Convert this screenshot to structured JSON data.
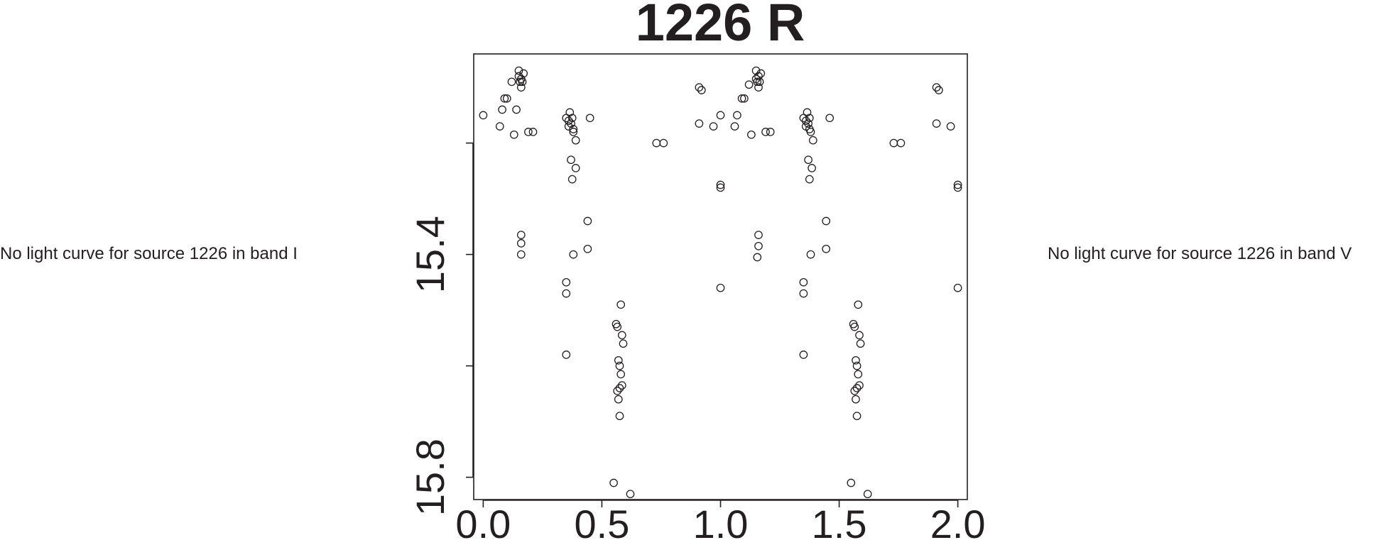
{
  "notes": {
    "left": "No light curve for source 1226 in band I",
    "right": "No light curve for source 1226 in band V"
  },
  "chart_data": {
    "type": "scatter",
    "title": "1226 R",
    "xlabel": "",
    "ylabel": "",
    "x_ticks": [
      0.0,
      0.5,
      1.0,
      1.5,
      2.0
    ],
    "x_tick_labels": [
      "0.0",
      "0.5",
      "1.0",
      "1.5",
      "2.0"
    ],
    "y_ticks": [
      15.2,
      15.4,
      15.6,
      15.8
    ],
    "y_tick_labels": [
      "",
      "15.4",
      "",
      "15.8"
    ],
    "xlim": [
      -0.04,
      2.04
    ],
    "ylim": [
      15.84,
      15.04
    ],
    "y_inverted": true,
    "grid": false,
    "marker": "open-circle",
    "color": "#231f20",
    "points": [
      [
        0.0,
        15.15
      ],
      [
        0.07,
        15.17
      ],
      [
        0.08,
        15.14
      ],
      [
        0.09,
        15.12
      ],
      [
        0.1,
        15.12
      ],
      [
        0.12,
        15.09
      ],
      [
        0.13,
        15.185
      ],
      [
        0.14,
        15.14
      ],
      [
        0.15,
        15.07
      ],
      [
        0.15,
        15.08
      ],
      [
        0.155,
        15.09
      ],
      [
        0.16,
        15.085
      ],
      [
        0.165,
        15.09
      ],
      [
        0.17,
        15.075
      ],
      [
        0.16,
        15.1
      ],
      [
        0.19,
        15.18
      ],
      [
        0.21,
        15.18
      ],
      [
        0.16,
        15.365
      ],
      [
        0.16,
        15.38
      ],
      [
        0.16,
        15.4
      ],
      [
        0.35,
        15.155
      ],
      [
        0.36,
        15.16
      ],
      [
        0.365,
        15.145
      ],
      [
        0.37,
        15.165
      ],
      [
        0.375,
        15.155
      ],
      [
        0.36,
        15.17
      ],
      [
        0.38,
        15.18
      ],
      [
        0.39,
        15.195
      ],
      [
        0.38,
        15.175
      ],
      [
        0.37,
        15.23
      ],
      [
        0.39,
        15.245
      ],
      [
        0.375,
        15.265
      ],
      [
        0.45,
        15.155
      ],
      [
        0.44,
        15.34
      ],
      [
        0.44,
        15.39
      ],
      [
        0.38,
        15.4
      ],
      [
        0.35,
        15.45
      ],
      [
        0.35,
        15.47
      ],
      [
        0.35,
        15.58
      ],
      [
        0.56,
        15.525
      ],
      [
        0.58,
        15.49
      ],
      [
        0.585,
        15.545
      ],
      [
        0.59,
        15.56
      ],
      [
        0.565,
        15.53
      ],
      [
        0.57,
        15.59
      ],
      [
        0.575,
        15.6
      ],
      [
        0.58,
        15.615
      ],
      [
        0.585,
        15.635
      ],
      [
        0.575,
        15.64
      ],
      [
        0.565,
        15.645
      ],
      [
        0.57,
        15.66
      ],
      [
        0.575,
        15.69
      ],
      [
        0.55,
        15.81
      ],
      [
        0.62,
        15.83
      ],
      [
        0.73,
        15.2
      ],
      [
        0.76,
        15.2
      ],
      [
        0.91,
        15.1
      ],
      [
        0.92,
        15.105
      ],
      [
        0.91,
        15.165
      ],
      [
        0.97,
        15.17
      ],
      [
        1.0,
        15.15
      ],
      [
        1.0,
        15.275
      ],
      [
        1.0,
        15.28
      ],
      [
        1.0,
        15.46
      ],
      [
        1.07,
        15.15
      ],
      [
        1.09,
        15.12
      ],
      [
        1.1,
        15.12
      ],
      [
        1.06,
        15.17
      ],
      [
        1.12,
        15.095
      ],
      [
        1.13,
        15.185
      ],
      [
        1.15,
        15.07
      ],
      [
        1.155,
        15.09
      ],
      [
        1.16,
        15.08
      ],
      [
        1.165,
        15.09
      ],
      [
        1.17,
        15.075
      ],
      [
        1.15,
        15.085
      ],
      [
        1.16,
        15.1
      ],
      [
        1.19,
        15.18
      ],
      [
        1.21,
        15.18
      ],
      [
        1.16,
        15.365
      ],
      [
        1.16,
        15.385
      ],
      [
        1.155,
        15.405
      ],
      [
        1.35,
        15.155
      ],
      [
        1.36,
        15.16
      ],
      [
        1.365,
        15.145
      ],
      [
        1.37,
        15.165
      ],
      [
        1.375,
        15.155
      ],
      [
        1.36,
        15.17
      ],
      [
        1.38,
        15.18
      ],
      [
        1.39,
        15.195
      ],
      [
        1.375,
        15.175
      ],
      [
        1.37,
        15.23
      ],
      [
        1.385,
        15.245
      ],
      [
        1.375,
        15.265
      ],
      [
        1.46,
        15.155
      ],
      [
        1.445,
        15.34
      ],
      [
        1.445,
        15.39
      ],
      [
        1.38,
        15.4
      ],
      [
        1.35,
        15.45
      ],
      [
        1.35,
        15.47
      ],
      [
        1.35,
        15.58
      ],
      [
        1.56,
        15.525
      ],
      [
        1.58,
        15.49
      ],
      [
        1.585,
        15.545
      ],
      [
        1.59,
        15.56
      ],
      [
        1.565,
        15.53
      ],
      [
        1.57,
        15.59
      ],
      [
        1.575,
        15.6
      ],
      [
        1.58,
        15.615
      ],
      [
        1.585,
        15.635
      ],
      [
        1.575,
        15.64
      ],
      [
        1.565,
        15.645
      ],
      [
        1.57,
        15.66
      ],
      [
        1.575,
        15.69
      ],
      [
        1.55,
        15.81
      ],
      [
        1.62,
        15.83
      ],
      [
        1.73,
        15.2
      ],
      [
        1.76,
        15.2
      ],
      [
        1.91,
        15.1
      ],
      [
        1.92,
        15.105
      ],
      [
        1.91,
        15.165
      ],
      [
        1.97,
        15.17
      ],
      [
        2.0,
        15.275
      ],
      [
        2.0,
        15.28
      ],
      [
        2.0,
        15.46
      ]
    ]
  }
}
